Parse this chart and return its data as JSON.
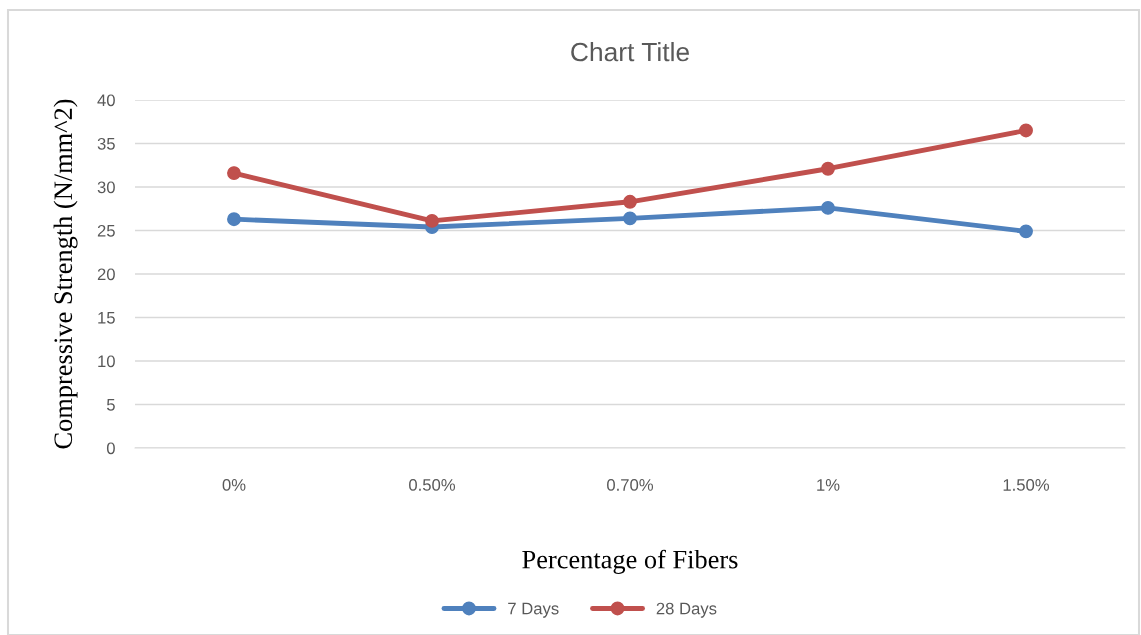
{
  "chart_data": {
    "type": "line",
    "title": "Chart Title",
    "xlabel": "Percentage of Fibers",
    "ylabel": "Compressive Strength (N/mm^2)",
    "categories": [
      "0%",
      "0.50%",
      "0.70%",
      "1%",
      "1.50%"
    ],
    "series": [
      {
        "name": "7 Days",
        "color": "#4f81bd",
        "values": [
          26.3,
          25.4,
          26.4,
          27.6,
          24.9
        ]
      },
      {
        "name": "28 Days",
        "color": "#c0504d",
        "values": [
          31.6,
          26.1,
          28.3,
          32.1,
          36.5
        ]
      }
    ],
    "ylim": [
      0,
      40
    ],
    "yticks": [
      0,
      5,
      10,
      15,
      20,
      25,
      30,
      35,
      40
    ],
    "grid": "y",
    "legend": "bottom",
    "marker": "circle",
    "line_style": "solid"
  }
}
